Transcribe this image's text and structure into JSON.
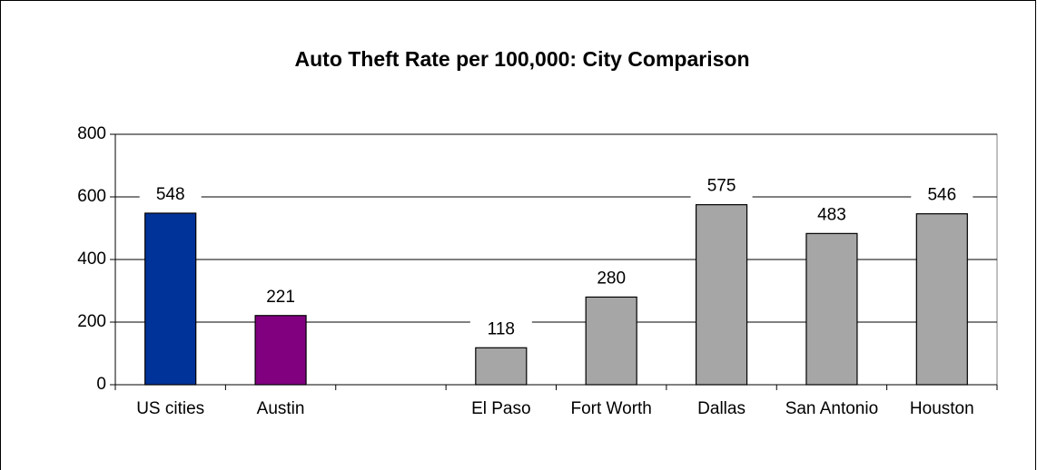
{
  "chart_data": {
    "type": "bar",
    "title": "Auto Theft Rate per 100,000: City Comparison",
    "categories": [
      "US cities",
      "Austin",
      null,
      "El Paso",
      "Fort Worth",
      "Dallas",
      "San Antonio",
      "Houston"
    ],
    "values": [
      548,
      221,
      null,
      118,
      280,
      575,
      483,
      546
    ],
    "colors": [
      "#003399",
      "#800080",
      null,
      "#a6a6a6",
      "#a6a6a6",
      "#a6a6a6",
      "#a6a6a6",
      "#a6a6a6"
    ],
    "ylim": [
      0,
      800
    ],
    "yticks": [
      0,
      200,
      400,
      600,
      800
    ],
    "grid": true
  }
}
